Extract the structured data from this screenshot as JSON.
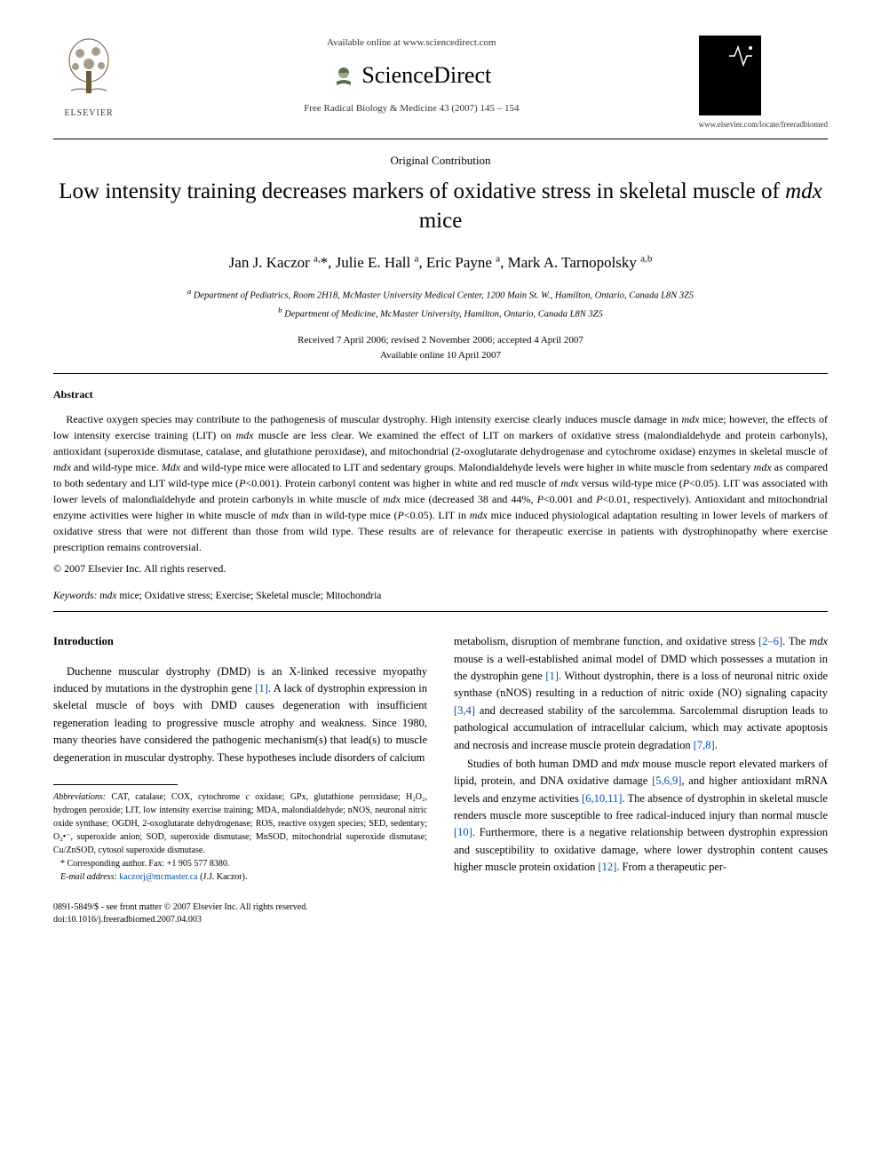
{
  "header": {
    "elsevier_label": "ELSEVIER",
    "available_online": "Available online at www.sciencedirect.com",
    "sciencedirect": "ScienceDirect",
    "journal_ref": "Free Radical Biology & Medicine 43 (2007) 145 – 154",
    "journal_url": "www.elsevier.com/locate/freeradbiomed"
  },
  "contribution_type": "Original Contribution",
  "title_pre": "Low intensity training decreases markers of oxidative stress in skeletal muscle of ",
  "title_italic": "mdx",
  "title_post": " mice",
  "authors_html": "Jan J. Kaczor <sup>a,</sup>*, Julie E. Hall <sup>a</sup>, Eric Payne <sup>a</sup>, Mark A. Tarnopolsky <sup>a,b</sup>",
  "affiliations": {
    "a": "Department of Pediatrics, Room 2H18, McMaster University Medical Center, 1200 Main St. W., Hamilton, Ontario, Canada L8N 3Z5",
    "b": "Department of Medicine, McMaster University, Hamilton, Ontario, Canada L8N 3Z5"
  },
  "dates": {
    "line1": "Received 7 April 2006; revised 2 November 2006; accepted 4 April 2007",
    "line2": "Available online 10 April 2007"
  },
  "abstract": {
    "heading": "Abstract",
    "body": "Reactive oxygen species may contribute to the pathogenesis of muscular dystrophy. High intensity exercise clearly induces muscle damage in <i>mdx</i> mice; however, the effects of low intensity exercise training (LIT) on <i>mdx</i> muscle are less clear. We examined the effect of LIT on markers of oxidative stress (malondialdehyde and protein carbonyls), antioxidant (superoxide dismutase, catalase, and glutathione peroxidase), and mitochondrial (2-oxoglutarate dehydrogenase and cytochrome oxidase) enzymes in skeletal muscle of <i>mdx</i> and wild-type mice. <i>Mdx</i> and wild-type mice were allocated to LIT and sedentary groups. Malondialdehyde levels were higher in white muscle from sedentary <i>mdx</i> as compared to both sedentary and LIT wild-type mice (<i>P</i><0.001). Protein carbonyl content was higher in white and red muscle of <i>mdx</i> versus wild-type mice (<i>P</i><0.05). LIT was associated with lower levels of malondialdehyde and protein carbonyls in white muscle of <i>mdx</i> mice (decreased 38 and 44%, <i>P</i><0.001 and <i>P</i><0.01, respectively). Antioxidant and mitochondrial enzyme activities were higher in white muscle of <i>mdx</i> than in wild-type mice (<i>P</i><0.05). LIT in <i>mdx</i> mice induced physiological adaptation resulting in lower levels of markers of oxidative stress that were not different than those from wild type. These results are of relevance for therapeutic exercise in patients with dystrophinopathy where exercise prescription remains controversial.",
    "copyright": "© 2007 Elsevier Inc. All rights reserved."
  },
  "keywords": {
    "label": "Keywords:",
    "text": " mdx mice; Oxidative stress; Exercise; Skeletal muscle; Mitochondria"
  },
  "intro": {
    "heading": "Introduction",
    "col1_p1": "Duchenne muscular dystrophy (DMD) is an X-linked recessive myopathy induced by mutations in the dystrophin gene <span class='ref-link'>[1]</span>. A lack of dystrophin expression in skeletal muscle of boys with DMD causes degeneration with insufficient regeneration leading to progressive muscle atrophy and weakness. Since 1980, many theories have considered the pathogenic mechanism(s) that lead(s) to muscle degeneration in muscular dystrophy. These hypotheses include disorders of calcium",
    "col2_p1": "metabolism, disruption of membrane function, and oxidative stress <span class='ref-link'>[2–6]</span>. The <span class='italic'>mdx</span> mouse is a well-established animal model of DMD which possesses a mutation in the dystrophin gene <span class='ref-link'>[1]</span>. Without dystrophin, there is a loss of neuronal nitric oxide synthase (nNOS) resulting in a reduction of nitric oxide (NO) signaling capacity <span class='ref-link'>[3,4]</span> and decreased stability of the sarcolemma. Sarcolemmal disruption leads to pathological accumulation of intracellular calcium, which may activate apoptosis and necrosis and increase muscle protein degradation <span class='ref-link'>[7,8]</span>.",
    "col2_p2": "Studies of both human DMD and <span class='italic'>mdx</span> mouse muscle report elevated markers of lipid, protein, and DNA oxidative damage <span class='ref-link'>[5,6,9]</span>, and higher antioxidant mRNA levels and enzyme activities <span class='ref-link'>[6,10,11]</span>. The absence of dystrophin in skeletal muscle renders muscle more susceptible to free radical-induced injury than normal muscle <span class='ref-link'>[10]</span>. Furthermore, there is a negative relationship between dystrophin expression and susceptibility to oxidative damage, where lower dystrophin content causes higher muscle protein oxidation <span class='ref-link'>[12]</span>. From a therapeutic per-"
  },
  "footnotes": {
    "abbrev_label": "Abbreviations:",
    "abbrev_text": " CAT, catalase; COX, cytochrome c oxidase; GPx, glutathione peroxidase; H₂O₂, hydrogen peroxide; LIT, low intensity exercise training; MDA, malondialdehyde; nNOS, neuronal nitric oxide synthase; OGDH, 2-oxoglutarate dehydrogenase; ROS, reactive oxygen species; SED, sedentary; O₂•⁻, superoxide anion; SOD, superoxide dismutase; MnSOD, mitochondrial superoxide dismutase; Cu/ZnSOD, cytosol superoxide dismutase.",
    "corresponding": "* Corresponding author. Fax: +1 905 577 8380.",
    "email_label": "E-mail address:",
    "email": "kaczorj@mcmaster.ca",
    "email_author": "(J.J. Kaczor)."
  },
  "footer": {
    "line1": "0891-5849/$ - see front matter © 2007 Elsevier Inc. All rights reserved.",
    "line2": "doi:10.1016/j.freeradbiomed.2007.04.003"
  },
  "colors": {
    "text": "#000000",
    "link": "#0050aa",
    "bg": "#ffffff"
  }
}
